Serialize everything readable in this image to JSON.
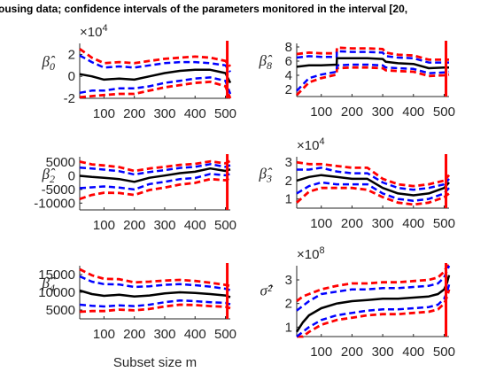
{
  "title": "ousing data; confidence intervals of the parameters monitored in the interval [20,",
  "colors": {
    "central": "#000000",
    "inner": "#0000ff",
    "outer": "#ff0000",
    "marker": "#ff0000",
    "axis": "#262626"
  },
  "chart_data": [
    {
      "type": "line",
      "ylabel": "β̂0",
      "exponent": "×10^4",
      "xlabel": "",
      "xlim": [
        20,
        516
      ],
      "ylim": [
        -2,
        3
      ],
      "xticks": [
        100,
        200,
        300,
        400,
        500
      ],
      "yticks": [
        -2,
        0,
        2
      ],
      "xtick_labels": [
        "100",
        "200",
        "300",
        "400",
        "500"
      ],
      "ytick_labels": [
        "-2",
        "0",
        "2"
      ],
      "vline_x": 506,
      "x": [
        20,
        60,
        100,
        150,
        200,
        250,
        300,
        350,
        400,
        450,
        500,
        516
      ],
      "series": [
        {
          "role": "center",
          "values": [
            0.2,
            0.0,
            -0.3,
            -0.2,
            -0.3,
            0.0,
            0.3,
            0.5,
            0.6,
            0.6,
            0.3,
            -0.6
          ]
        },
        {
          "role": "inner-upper",
          "values": [
            1.9,
            1.3,
            0.8,
            0.9,
            0.8,
            1.0,
            1.2,
            1.3,
            1.3,
            1.2,
            1.0,
            0.4
          ]
        },
        {
          "role": "inner-lower",
          "values": [
            -1.5,
            -1.3,
            -1.3,
            -1.1,
            -1.1,
            -0.9,
            -0.6,
            -0.4,
            -0.2,
            -0.1,
            -0.4,
            -1.6
          ]
        },
        {
          "role": "outer-upper",
          "values": [
            2.5,
            1.7,
            1.2,
            1.3,
            1.2,
            1.4,
            1.6,
            1.7,
            1.8,
            1.7,
            1.4,
            0.9
          ]
        },
        {
          "role": "outer-lower",
          "values": [
            -1.9,
            -1.8,
            -1.7,
            -1.6,
            -1.6,
            -1.3,
            -1.0,
            -0.8,
            -0.6,
            -0.5,
            -0.9,
            -2.0
          ]
        }
      ]
    },
    {
      "type": "line",
      "ylabel": "β̂8",
      "exponent": "",
      "xlabel": "",
      "xlim": [
        20,
        516
      ],
      "ylim": [
        1,
        8.5
      ],
      "xticks": [
        100,
        200,
        300,
        400,
        500
      ],
      "yticks": [
        2,
        4,
        6,
        8
      ],
      "xtick_labels": [
        "100",
        "200",
        "300",
        "400",
        "500"
      ],
      "ytick_labels": [
        "2",
        "4",
        "6",
        "8"
      ],
      "vline_x": 506,
      "x": [
        20,
        60,
        100,
        150,
        151,
        200,
        250,
        300,
        310,
        350,
        400,
        450,
        500,
        516
      ],
      "series": [
        {
          "role": "center",
          "values": [
            5.2,
            5.4,
            5.4,
            5.5,
            6.4,
            6.4,
            6.4,
            6.3,
            5.9,
            5.7,
            5.6,
            5.0,
            5.1,
            5.1
          ]
        },
        {
          "role": "inner-upper",
          "values": [
            6.5,
            6.7,
            6.6,
            6.6,
            7.4,
            7.3,
            7.3,
            7.2,
            6.7,
            6.5,
            6.4,
            5.8,
            5.8,
            5.8
          ]
        },
        {
          "role": "inner-lower",
          "values": [
            1.8,
            3.6,
            4.1,
            4.5,
            5.4,
            5.5,
            5.5,
            5.4,
            5.1,
            5.0,
            4.9,
            4.3,
            4.4,
            4.5
          ]
        },
        {
          "role": "outer-upper",
          "values": [
            7.0,
            7.2,
            7.1,
            7.1,
            7.9,
            7.8,
            7.8,
            7.7,
            7.2,
            6.9,
            6.8,
            6.2,
            6.2,
            6.2
          ]
        },
        {
          "role": "outer-lower",
          "values": [
            1.2,
            3.0,
            3.6,
            4.1,
            5.0,
            5.1,
            5.1,
            5.0,
            4.7,
            4.6,
            4.5,
            3.9,
            4.0,
            4.1
          ]
        }
      ]
    },
    {
      "type": "line",
      "ylabel": "β̂2",
      "exponent": "",
      "xlabel": "",
      "xlim": [
        20,
        516
      ],
      "ylim": [
        -12500,
        7000
      ],
      "xticks": [
        100,
        200,
        300,
        400,
        500
      ],
      "yticks": [
        -10000,
        -5000,
        0,
        5000
      ],
      "xtick_labels": [
        "100",
        "200",
        "300",
        "400",
        "500"
      ],
      "ytick_labels": [
        "-10000",
        "-5000",
        "0",
        "5000"
      ],
      "vline_x": 506,
      "x": [
        20,
        60,
        100,
        150,
        200,
        250,
        300,
        350,
        400,
        450,
        500,
        516
      ],
      "series": [
        {
          "role": "center",
          "values": [
            0,
            -400,
            -700,
            -1200,
            -2200,
            -700,
            100,
            1000,
            1500,
            2700,
            1800,
            2400
          ]
        },
        {
          "role": "inner-upper",
          "values": [
            3000,
            2700,
            2300,
            1700,
            500,
            1400,
            2100,
            2900,
            3300,
            4300,
            3300,
            3900
          ]
        },
        {
          "role": "inner-lower",
          "values": [
            -4500,
            -4200,
            -3900,
            -4300,
            -5000,
            -3000,
            -2200,
            -1200,
            -800,
            700,
            200,
            700
          ]
        },
        {
          "role": "outer-upper",
          "values": [
            5200,
            4200,
            3800,
            3200,
            1800,
            2700,
            3300,
            4000,
            4400,
            5300,
            4600,
            5500
          ]
        },
        {
          "role": "outer-lower",
          "values": [
            -8500,
            -7000,
            -6200,
            -6300,
            -7000,
            -5200,
            -4300,
            -3200,
            -2600,
            -1200,
            -1600,
            -800
          ]
        }
      ]
    },
    {
      "type": "line",
      "ylabel": "β̂3",
      "exponent": "×10^4",
      "xlabel": "",
      "xlim": [
        20,
        516
      ],
      "ylim": [
        0.5,
        3.3
      ],
      "xticks": [
        100,
        200,
        300,
        400,
        500
      ],
      "yticks": [
        1,
        2,
        3
      ],
      "xtick_labels": [
        "100",
        "200",
        "300",
        "400",
        "500"
      ],
      "ytick_labels": [
        "1",
        "2",
        "3"
      ],
      "vline_x": 506,
      "x": [
        20,
        60,
        100,
        150,
        200,
        250,
        300,
        350,
        400,
        450,
        500,
        516
      ],
      "series": [
        {
          "role": "center",
          "values": [
            2.0,
            2.2,
            2.3,
            2.2,
            2.1,
            2.1,
            1.6,
            1.3,
            1.2,
            1.3,
            1.6,
            1.9
          ]
        },
        {
          "role": "inner-upper",
          "values": [
            2.6,
            2.6,
            2.7,
            2.5,
            2.4,
            2.4,
            1.9,
            1.6,
            1.5,
            1.6,
            1.8,
            2.1
          ]
        },
        {
          "role": "inner-lower",
          "values": [
            1.3,
            1.7,
            1.9,
            1.8,
            1.8,
            1.8,
            1.3,
            1.0,
            0.9,
            1.0,
            1.3,
            1.6
          ]
        },
        {
          "role": "outer-upper",
          "values": [
            3.0,
            2.9,
            2.9,
            2.8,
            2.7,
            2.7,
            2.1,
            1.8,
            1.7,
            1.8,
            2.0,
            2.3
          ]
        },
        {
          "role": "outer-lower",
          "values": [
            0.8,
            1.4,
            1.6,
            1.6,
            1.6,
            1.5,
            1.1,
            0.8,
            0.7,
            0.8,
            1.1,
            1.3
          ]
        }
      ]
    },
    {
      "type": "line",
      "ylabel": "β̂4",
      "exponent": "",
      "xlabel": "Subset size m",
      "xlim": [
        20,
        516
      ],
      "ylim": [
        2500,
        17500
      ],
      "xticks": [
        100,
        200,
        300,
        400,
        500
      ],
      "yticks": [
        5000,
        10000,
        15000
      ],
      "xtick_labels": [
        "100",
        "200",
        "300",
        "400",
        "500"
      ],
      "ytick_labels": [
        "5000",
        "10000",
        "15000"
      ],
      "vline_x": 506,
      "x": [
        20,
        60,
        100,
        150,
        200,
        250,
        300,
        350,
        400,
        450,
        500,
        516
      ],
      "series": [
        {
          "role": "center",
          "values": [
            10500,
            9500,
            9000,
            9300,
            8800,
            9100,
            9700,
            10000,
            9800,
            9500,
            9100,
            8600
          ]
        },
        {
          "role": "inner-upper",
          "values": [
            14500,
            13000,
            12300,
            12200,
            11500,
            11700,
            12100,
            12300,
            12000,
            11600,
            11000,
            10600
          ]
        },
        {
          "role": "inner-lower",
          "values": [
            6500,
            6200,
            6000,
            6300,
            6100,
            6500,
            7200,
            7700,
            7500,
            7200,
            7000,
            6600
          ]
        },
        {
          "role": "outer-upper",
          "values": [
            16500,
            14800,
            13800,
            13700,
            12800,
            13000,
            13300,
            13500,
            13200,
            12700,
            12100,
            11800
          ]
        },
        {
          "role": "outer-lower",
          "values": [
            4500,
            4700,
            4700,
            5100,
            4900,
            5300,
            6000,
            6500,
            6400,
            6100,
            5900,
            5500
          ]
        }
      ]
    },
    {
      "type": "line",
      "ylabel": "σ̂²",
      "exponent": "×10^8",
      "xlabel": "Subset size m",
      "xlim": [
        20,
        516
      ],
      "ylim": [
        0.6,
        3.6
      ],
      "xticks": [
        100,
        200,
        300,
        400,
        500
      ],
      "yticks": [
        1,
        2,
        3
      ],
      "xtick_labels": [
        "100",
        "200",
        "300",
        "400",
        "500"
      ],
      "ytick_labels": [
        "1",
        "2",
        "3"
      ],
      "vline_x": 506,
      "x": [
        20,
        40,
        60,
        100,
        150,
        200,
        250,
        300,
        350,
        400,
        450,
        480,
        500,
        510,
        516
      ],
      "series": [
        {
          "role": "center",
          "values": [
            0.8,
            1.2,
            1.5,
            1.8,
            2.0,
            2.1,
            2.15,
            2.2,
            2.2,
            2.25,
            2.3,
            2.4,
            2.6,
            2.9,
            3.2
          ]
        },
        {
          "role": "inner-upper",
          "values": [
            1.7,
            1.9,
            2.1,
            2.4,
            2.5,
            2.6,
            2.6,
            2.65,
            2.65,
            2.7,
            2.75,
            2.85,
            3.1,
            3.4,
            3.6
          ]
        },
        {
          "role": "inner-lower",
          "values": [
            0.6,
            0.8,
            1.0,
            1.3,
            1.5,
            1.6,
            1.7,
            1.75,
            1.75,
            1.8,
            1.85,
            1.95,
            2.2,
            2.5,
            2.8
          ]
        },
        {
          "role": "outer-upper",
          "values": [
            2.1,
            2.3,
            2.4,
            2.6,
            2.75,
            2.85,
            2.85,
            2.9,
            2.9,
            2.95,
            3.0,
            3.1,
            3.35,
            3.6,
            3.6
          ]
        },
        {
          "role": "outer-lower",
          "values": [
            0.6,
            0.6,
            0.8,
            1.1,
            1.3,
            1.4,
            1.5,
            1.55,
            1.55,
            1.6,
            1.65,
            1.75,
            2.0,
            2.3,
            2.6
          ]
        }
      ]
    }
  ]
}
